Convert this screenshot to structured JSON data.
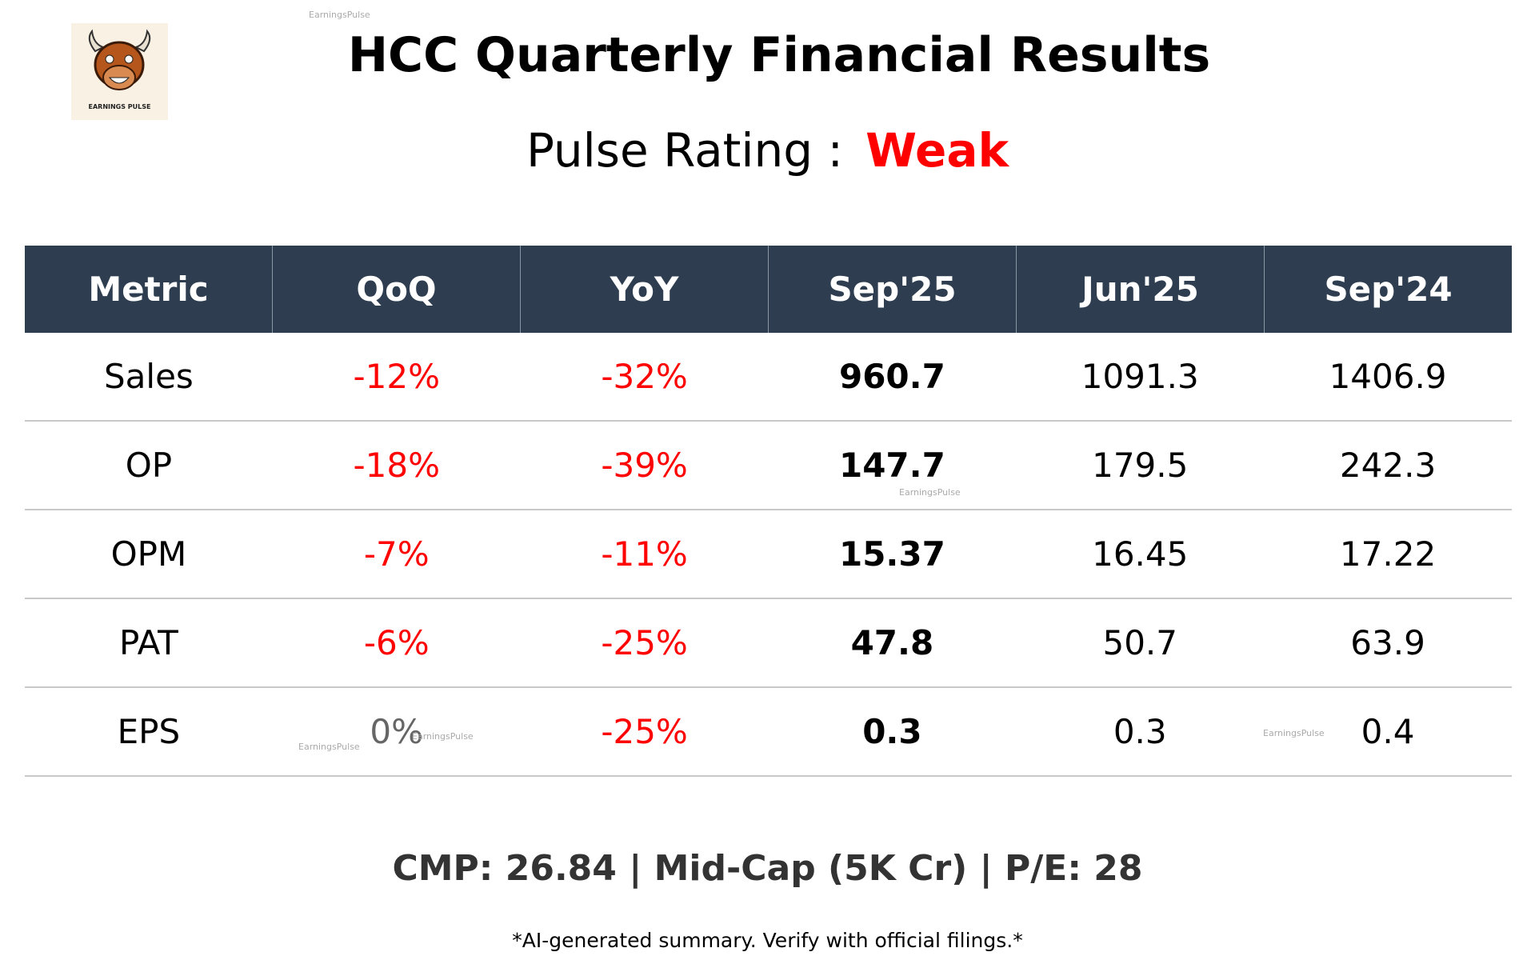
{
  "header": {
    "title": "HCC Quarterly Financial Results",
    "rating_label": "Pulse Rating :",
    "rating": "Weak",
    "logo_text": "EARNINGS PULSE",
    "watermark": "EarningsPulse"
  },
  "table": {
    "columns": [
      "Metric",
      "QoQ",
      "YoY",
      "Sep'25",
      "Jun'25",
      "Sep'24"
    ],
    "rows": [
      [
        "Sales",
        "-12%",
        "-32%",
        "960.7",
        "1091.3",
        "1406.9"
      ],
      [
        "OP",
        "-18%",
        "-39%",
        "147.7",
        "179.5",
        "242.3"
      ],
      [
        "OPM",
        "-7%",
        "-11%",
        "15.37",
        "16.45",
        "17.22"
      ],
      [
        "PAT",
        "-6%",
        "-25%",
        "47.8",
        "50.7",
        "63.9"
      ],
      [
        "EPS",
        "0%",
        "-25%",
        "0.3",
        "0.3",
        "0.4"
      ]
    ]
  },
  "footer": {
    "summary": "CMP: 26.84 | Mid-Cap (5K Cr) | P/E: 28",
    "disclaimer": "*AI-generated summary. Verify with official filings.*"
  }
}
